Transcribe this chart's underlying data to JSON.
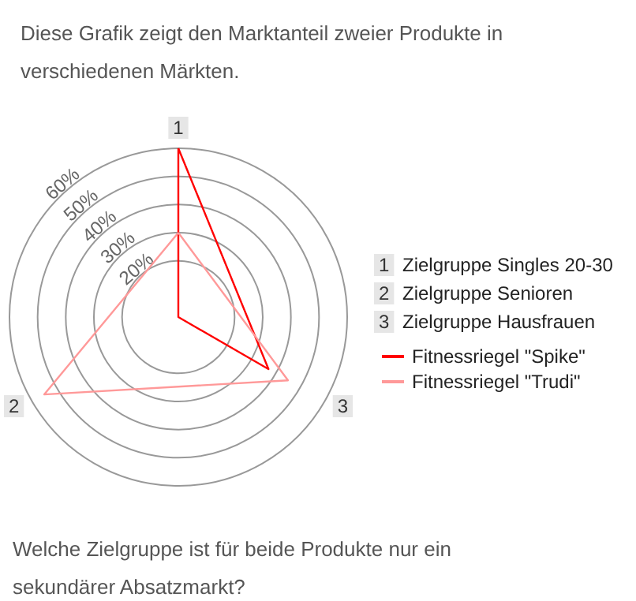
{
  "chart_data": {
    "type": "radar",
    "title": "Diese Grafik zeigt den Marktanteil zweier Produkte in verschiedenen Märkten.",
    "categories": [
      "1",
      "3",
      "2"
    ],
    "series": [
      {
        "name": "Fitnessriegel \"Spike\"",
        "color": "#ff0000",
        "values": [
          60,
          37,
          0
        ]
      },
      {
        "name": "Fitnessriegel \"Trudi\"",
        "color": "#ff9999",
        "values": [
          30,
          45,
          55
        ]
      }
    ],
    "ylim": [
      0,
      60
    ],
    "yticks": [
      {
        "value": 20,
        "label": "20%"
      },
      {
        "value": 30,
        "label": "30%"
      },
      {
        "value": 40,
        "label": "40%"
      },
      {
        "value": 50,
        "label": "50%"
      },
      {
        "value": 60,
        "label": "60%"
      }
    ],
    "grid": true,
    "legend": "right",
    "annotations": [
      "Zielgruppe Singles 20-30",
      "Zielgruppe Senioren",
      "Zielgruppe Hausfrauen",
      "Welche Zielgruppe ist für beide Produkte nur ein sekundärer Absatzmarkt?"
    ]
  }
}
